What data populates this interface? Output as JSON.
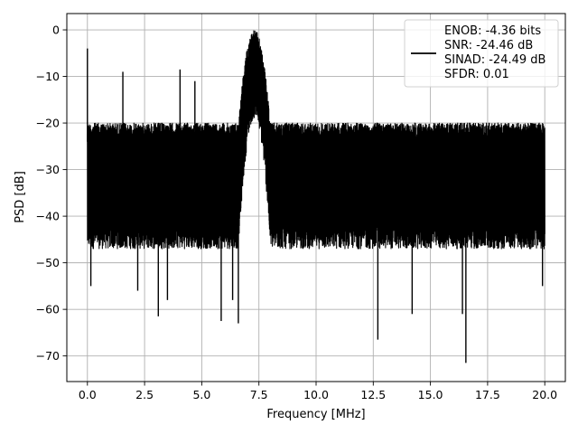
{
  "chart_data": {
    "type": "line",
    "title": "",
    "xlabel": "Frequency [MHz]",
    "ylabel": "PSD [dB]",
    "xlim": [
      -0.9,
      20.9
    ],
    "ylim": [
      -75.5,
      3.5
    ],
    "xticks": [
      0.0,
      2.5,
      5.0,
      7.5,
      10.0,
      12.5,
      15.0,
      17.5,
      20.0
    ],
    "xtick_labels": [
      "0.0",
      "2.5",
      "5.0",
      "7.5",
      "10.0",
      "12.5",
      "15.0",
      "17.5",
      "20.0"
    ],
    "yticks": [
      0,
      -10,
      -20,
      -30,
      -40,
      -50,
      -60,
      -70
    ],
    "ytick_labels": [
      "0",
      "−10",
      "−20",
      "−30",
      "−40",
      "−50",
      "−60",
      "−70"
    ],
    "grid": true,
    "legend": {
      "placement": "top-right",
      "entries": [
        "ENOB: -4.36 bits",
        "SNR: -24.46 dB",
        "SINAD: -24.49 dB",
        "SFDR: 0.01"
      ]
    },
    "series": [
      {
        "color": "#000000",
        "x_range": [
          0.0,
          20.0
        ],
        "noise_floor_db": [
          -47,
          -20
        ],
        "peak_band_mhz": [
          6.6,
          8.0
        ],
        "peak_max_db": 0.0,
        "spikes": [
          {
            "x": 0.0,
            "y": -4
          },
          {
            "x": 1.55,
            "y": -9
          },
          {
            "x": 4.05,
            "y": -8.5
          },
          {
            "x": 4.7,
            "y": -11
          },
          {
            "x": 0.15,
            "y": -55
          },
          {
            "x": 2.2,
            "y": -56
          },
          {
            "x": 3.1,
            "y": -61.5
          },
          {
            "x": 3.5,
            "y": -58
          },
          {
            "x": 5.85,
            "y": -62.5
          },
          {
            "x": 6.35,
            "y": -58
          },
          {
            "x": 6.6,
            "y": -63
          },
          {
            "x": 12.7,
            "y": -66.5
          },
          {
            "x": 14.2,
            "y": -61
          },
          {
            "x": 16.4,
            "y": -61
          },
          {
            "x": 16.55,
            "y": -71.5
          },
          {
            "x": 19.9,
            "y": -55
          }
        ]
      }
    ]
  }
}
